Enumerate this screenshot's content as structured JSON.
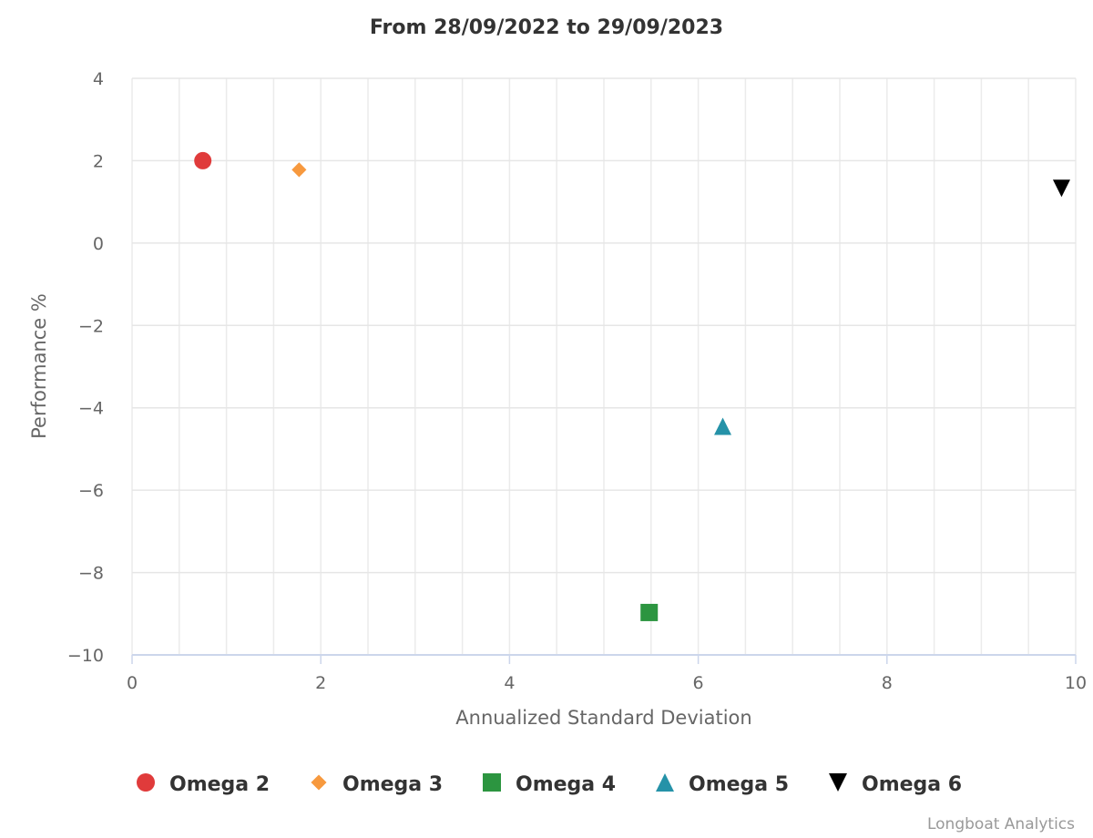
{
  "chart_data": {
    "type": "scatter",
    "title": "From 28/09/2022 to 29/09/2023",
    "xlabel": "Annualized Standard Deviation",
    "ylabel": "Performance %",
    "xlim": [
      0,
      10
    ],
    "ylim": [
      -10,
      4
    ],
    "x_ticks": [
      "0",
      "2",
      "4",
      "6",
      "8",
      "10"
    ],
    "y_ticks": [
      "4",
      "2",
      "0",
      "−2",
      "−4",
      "−6",
      "−8",
      "−10"
    ],
    "grid": true,
    "legend_position": "bottom",
    "series": [
      {
        "name": "Omega 2",
        "marker": "circle",
        "color": "#e03b3b",
        "x": 0.75,
        "y": 2.0
      },
      {
        "name": "Omega 3",
        "marker": "diamond",
        "color": "#f7993e",
        "x": 1.77,
        "y": 1.78
      },
      {
        "name": "Omega 4",
        "marker": "square",
        "color": "#2c9540",
        "x": 5.48,
        "y": -8.97
      },
      {
        "name": "Omega 5",
        "marker": "triangle-up",
        "color": "#2592a8",
        "x": 6.26,
        "y": -4.45
      },
      {
        "name": "Omega 6",
        "marker": "triangle-down",
        "color": "#000000",
        "x": 9.85,
        "y": 1.33
      }
    ],
    "credits": "Longboat Analytics"
  }
}
